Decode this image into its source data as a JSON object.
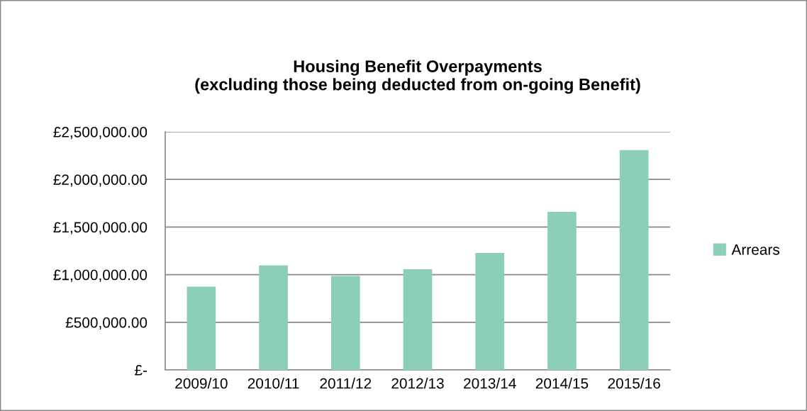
{
  "chart_data": {
    "type": "bar",
    "title": "Housing Benefit Overpayments\n(excluding those being deducted from on-going Benefit)",
    "categories": [
      "2009/10",
      "2010/11",
      "2011/12",
      "2012/13",
      "2013/14",
      "2014/15",
      "2015/16"
    ],
    "series": [
      {
        "name": "Arrears",
        "color": "#8ccfb7",
        "values": [
          875000,
          1098000,
          985000,
          1057000,
          1228000,
          1659000,
          2309000
        ]
      }
    ],
    "ylim": [
      0,
      2500000
    ],
    "yticks": [
      {
        "value": 0,
        "label": "£-"
      },
      {
        "value": 500000,
        "label": "£500,000.00"
      },
      {
        "value": 1000000,
        "label": "£1,000,000.00"
      },
      {
        "value": 1500000,
        "label": "£1,500,000.00"
      },
      {
        "value": 2000000,
        "label": "£2,000,000.00"
      },
      {
        "value": 2500000,
        "label": "£2,500,000.00"
      }
    ],
    "grid": "y",
    "legend": "right"
  }
}
